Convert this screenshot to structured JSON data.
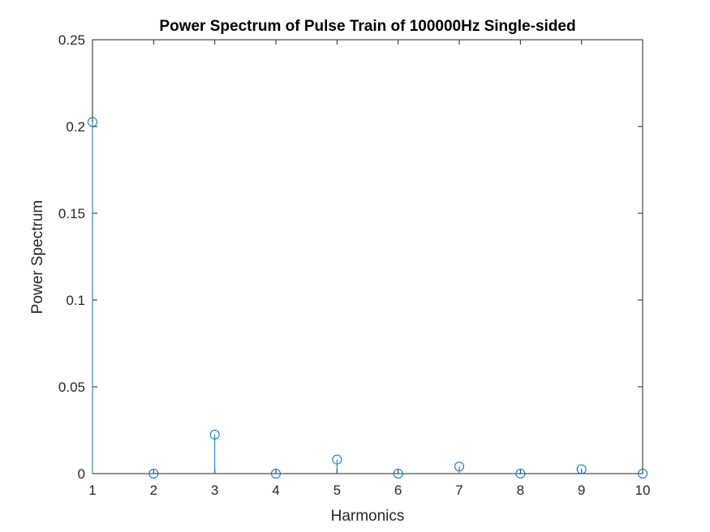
{
  "chart_data": {
    "type": "stem",
    "title": "Power Spectrum of Pulse Train of 100000Hz Single-sided",
    "xlabel": "Harmonics",
    "ylabel": "Power Spectrum",
    "xlim": [
      1,
      10
    ],
    "ylim": [
      0,
      0.25
    ],
    "x_ticks": [
      "1",
      "2",
      "3",
      "4",
      "5",
      "6",
      "7",
      "8",
      "9",
      "10"
    ],
    "y_ticks": [
      "0",
      "0.05",
      "0.1",
      "0.15",
      "0.2",
      "0.25"
    ],
    "y_tick_values": [
      0,
      0.05,
      0.1,
      0.15,
      0.2,
      0.25
    ],
    "x": [
      1,
      2,
      3,
      4,
      5,
      6,
      7,
      8,
      9,
      10
    ],
    "values": [
      0.2026,
      0.0,
      0.0225,
      0.0,
      0.0081,
      0.0,
      0.0041,
      0.0,
      0.0025,
      0.0
    ],
    "grid": false,
    "series_color": "#0072BD",
    "axis_color": "#262626"
  }
}
